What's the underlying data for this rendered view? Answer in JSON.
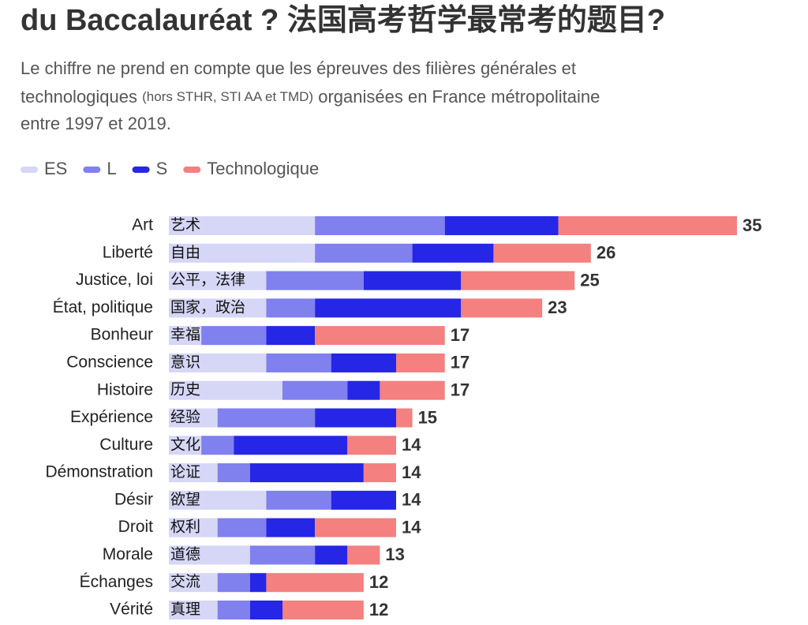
{
  "chart_data": {
    "type": "stacked-bar-horizontal",
    "title": "du Baccalauréat ? 法国高考哲学最常考的题目?",
    "subtitle": [
      "Le chiffre ne prend en compte que les épreuves des filières générales et",
      "technologiques",
      "(hors STHR, STI AA et TMD)",
      "organisées en France métropolitaine",
      "entre 1997 et 2019."
    ],
    "categories": [
      "Art",
      "Liberté",
      "Justice, loi",
      "État, politique",
      "Bonheur",
      "Conscience",
      "Histoire",
      "Expérience",
      "Culture",
      "Démonstration",
      "Désir",
      "Droit",
      "Morale",
      "Échanges",
      "Vérité"
    ],
    "categories_zh": [
      "艺术",
      "自由",
      "公平，法律",
      "国家，政治",
      "幸福",
      "意识",
      "历史",
      "经验",
      "文化",
      "论证",
      "欲望",
      "权利",
      "道德",
      "交流",
      "真理"
    ],
    "series": [
      {
        "name": "ES",
        "color": "#d6d6f7",
        "values": [
          9,
          9,
          6,
          6,
          2,
          6,
          7,
          3,
          2,
          3,
          6,
          3,
          5,
          3,
          3
        ]
      },
      {
        "name": "L",
        "color": "#8080ee",
        "values": [
          8,
          6,
          6,
          3,
          4,
          4,
          4,
          6,
          2,
          2,
          4,
          3,
          4,
          2,
          2
        ]
      },
      {
        "name": "S",
        "color": "#2626e6",
        "values": [
          7,
          5,
          6,
          9,
          3,
          4,
          2,
          5,
          7,
          7,
          4,
          3,
          2,
          1,
          2
        ]
      },
      {
        "name": "Technologique",
        "color": "#f48080",
        "values": [
          11,
          6,
          7,
          5,
          8,
          3,
          4,
          1,
          3,
          2,
          0,
          5,
          2,
          6,
          5
        ]
      }
    ],
    "totals": [
      35,
      26,
      25,
      23,
      17,
      17,
      17,
      15,
      14,
      14,
      14,
      14,
      13,
      12,
      12
    ]
  }
}
